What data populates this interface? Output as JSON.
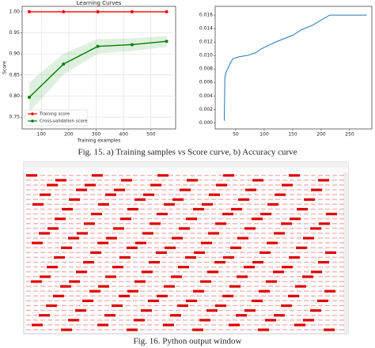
{
  "chart_data": [
    {
      "type": "line",
      "title": "Learning Curves",
      "x_label": "Training examples",
      "y_label": "Score",
      "x": [
        56,
        181,
        306,
        431,
        557
      ],
      "series": [
        {
          "name": "Training score",
          "color": "#ff0000",
          "values": [
            1.0,
            1.0,
            1.0,
            1.0,
            1.0
          ]
        },
        {
          "name": "Cross-validation score",
          "color": "#008000",
          "values": [
            0.797,
            0.876,
            0.918,
            0.922,
            0.93
          ],
          "std": [
            0.035,
            0.025,
            0.017,
            0.015,
            0.013
          ]
        }
      ],
      "xlim": [
        30,
        590
      ],
      "ylim": [
        0.722,
        1.013
      ],
      "xticks": [
        100,
        200,
        300,
        400,
        500
      ],
      "yticks": [
        {
          "value": 0.75,
          "label": "0.75"
        },
        {
          "value": 0.8,
          "label": "0.80"
        },
        {
          "value": 0.85,
          "label": "0.85"
        },
        {
          "value": 0.9,
          "label": "0.90"
        },
        {
          "value": 0.95,
          "label": "0.95"
        },
        {
          "value": 1.0,
          "label": "1.00"
        }
      ],
      "grid": true,
      "legend": "lower left"
    },
    {
      "type": "step",
      "x": [
        30,
        31,
        33,
        36,
        40,
        45,
        55,
        70,
        85,
        95,
        110,
        120,
        135,
        150,
        165,
        185,
        215,
        280
      ],
      "series": [
        {
          "color": "#1f77b4",
          "values": [
            0.0003,
            0.0068,
            0.0075,
            0.008,
            0.0088,
            0.0095,
            0.0098,
            0.01,
            0.0104,
            0.011,
            0.0116,
            0.012,
            0.0125,
            0.013,
            0.0138,
            0.0145,
            0.016,
            0.016
          ]
        }
      ],
      "xlim": [
        14,
        289
      ],
      "ylim": [
        -0.0009,
        0.0173
      ],
      "xticks": [
        50,
        100,
        150,
        200,
        250
      ],
      "yticks": [
        {
          "value": 0,
          "label": "0.000"
        },
        {
          "value": 0.002,
          "label": "0.002"
        },
        {
          "value": 0.004,
          "label": "0.004"
        },
        {
          "value": 0.006,
          "label": "0.006"
        },
        {
          "value": 0.008,
          "label": "0.008"
        },
        {
          "value": 0.01,
          "label": "0.010"
        },
        {
          "value": 0.012,
          "label": "0.012"
        },
        {
          "value": 0.014,
          "label": "0.014"
        },
        {
          "value": 0.016,
          "label": "0.016"
        }
      ],
      "grid": false
    }
  ],
  "captions": [
    "Fig. 15. a) Training samples vs Score curve, b) Accuracy curve",
    "Fig. 16. Python output window"
  ]
}
